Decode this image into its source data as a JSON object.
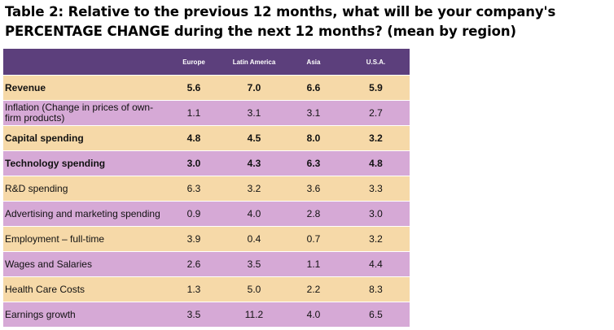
{
  "header": {
    "title_line1": "Table 2: Relative to the previous 12 months, what will be your company's",
    "title_line2": "PERCENTAGE CHANGE during the next 12 months? (mean by region)"
  },
  "table": {
    "columns": [
      "Europe",
      "Latin America",
      "Asia",
      "U.S.A."
    ],
    "rows": [
      {
        "label": "Revenue",
        "bold": true,
        "values": [
          "5.6",
          "7.0",
          "6.6",
          "5.9"
        ]
      },
      {
        "label": "Inflation (Change in prices of own-firm products)",
        "bold": false,
        "values": [
          "1.1",
          "3.1",
          "3.1",
          "2.7"
        ]
      },
      {
        "label": "Capital spending",
        "bold": true,
        "values": [
          "4.8",
          "4.5",
          "8.0",
          "3.2"
        ]
      },
      {
        "label": "Technology spending",
        "bold": true,
        "values": [
          "3.0",
          "4.3",
          "6.3",
          "4.8"
        ]
      },
      {
        "label": "R&D spending",
        "bold": false,
        "values": [
          "6.3",
          "3.2",
          "3.6",
          "3.3"
        ]
      },
      {
        "label": "Advertising and marketing spending",
        "bold": false,
        "values": [
          "0.9",
          "4.0",
          "2.8",
          "3.0"
        ]
      },
      {
        "label": "Employment – full-time",
        "bold": false,
        "values": [
          "3.9",
          "0.4",
          "0.7",
          "3.2"
        ]
      },
      {
        "label": "Wages and Salaries",
        "bold": false,
        "values": [
          "2.6",
          "3.5",
          "1.1",
          "4.4"
        ]
      },
      {
        "label": "Health Care Costs",
        "bold": false,
        "values": [
          "1.3",
          "5.0",
          "2.2",
          "8.3"
        ]
      },
      {
        "label": "Earnings growth",
        "bold": false,
        "values": [
          "3.5",
          "11.2",
          "4.0",
          "6.5"
        ]
      }
    ]
  }
}
